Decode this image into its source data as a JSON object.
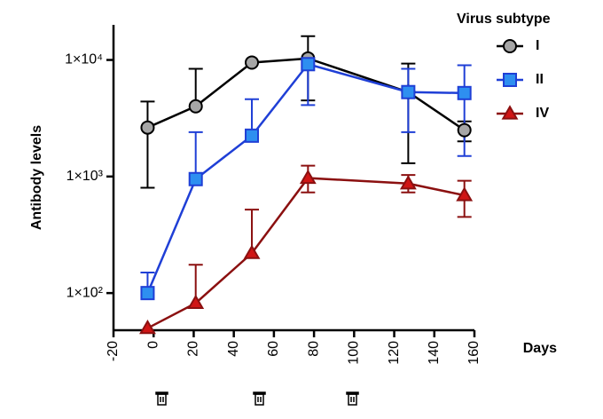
{
  "chart_data": {
    "type": "line",
    "x_label": "Days",
    "y_label": "Antibody levels",
    "legend_title": "Virus subtype",
    "log_y": true,
    "legend": "top-right",
    "xlim": [
      -20,
      160
    ],
    "xticks": [
      -20,
      0,
      20,
      40,
      60,
      80,
      100,
      120,
      140,
      160
    ],
    "ylim": [
      48,
      20000
    ],
    "yticks": [
      {
        "value": 100,
        "label": "1×10²"
      },
      {
        "value": 1000,
        "label": "1×10³"
      },
      {
        "value": 10000,
        "label": "1×10⁴"
      }
    ],
    "x": [
      -3,
      21,
      49,
      77,
      127,
      155
    ],
    "series": [
      {
        "name": "I",
        "color": "#000000",
        "fill": "#a6a6a6",
        "marker": "circle",
        "values": [
          2630,
          4000,
          9500,
          10300,
          5300,
          2500
        ],
        "upper": [
          4400,
          8400,
          null,
          16000,
          9300,
          2970
        ],
        "lower": [
          800,
          null,
          null,
          4500,
          1300,
          2000
        ]
      },
      {
        "name": "II",
        "color": "#1f3fd6",
        "fill": "#2e8ff0",
        "marker": "square",
        "values": [
          100,
          950,
          2240,
          9200,
          5300,
          5200
        ],
        "upper": [
          150,
          2400,
          4600,
          null,
          8400,
          9000
        ],
        "lower": [
          null,
          null,
          null,
          4100,
          2400,
          1500
        ]
      },
      {
        "name": "IV",
        "color": "#8b1010",
        "fill": "#d01515",
        "marker": "triangle",
        "values": [
          50,
          82,
          220,
          970,
          870,
          690
        ],
        "upper": [
          null,
          175,
          520,
          1240,
          1030,
          920
        ],
        "lower": [
          null,
          null,
          null,
          730,
          730,
          450
        ]
      }
    ]
  }
}
